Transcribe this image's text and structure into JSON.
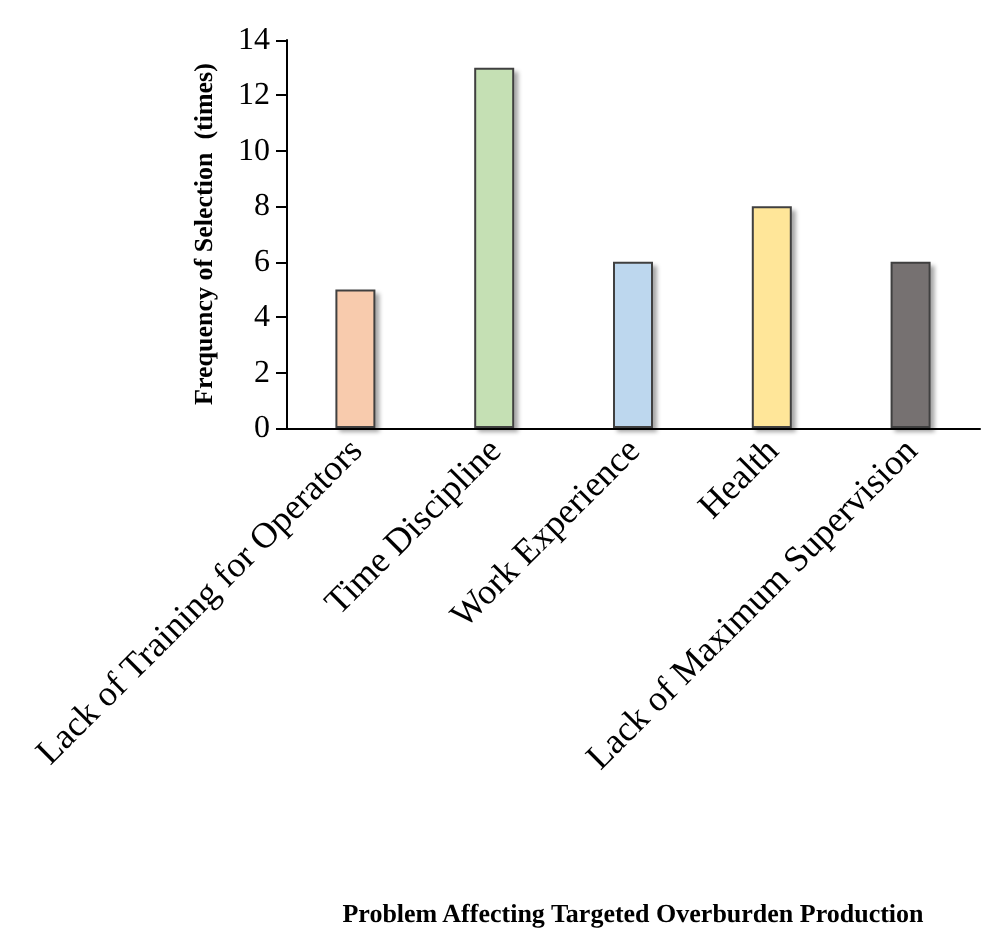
{
  "chart_data": {
    "type": "bar",
    "xlabel": "Problem Affecting Targeted Overburden Production",
    "ylabel": "Frequency of Selection  (times)",
    "categories": [
      "Lack of Training for Operators",
      "Time Discipline",
      "Work Experience",
      "Health",
      "Lack of Maximum Supervision"
    ],
    "values": [
      5,
      13,
      6,
      8,
      6
    ],
    "colors": [
      "#f8cbad",
      "#c5e0b4",
      "#bdd7ee",
      "#ffe699",
      "#767171"
    ],
    "ylim": [
      0,
      14
    ],
    "yticks": [
      0,
      2,
      4,
      6,
      8,
      10,
      12,
      14
    ],
    "grid": false
  }
}
